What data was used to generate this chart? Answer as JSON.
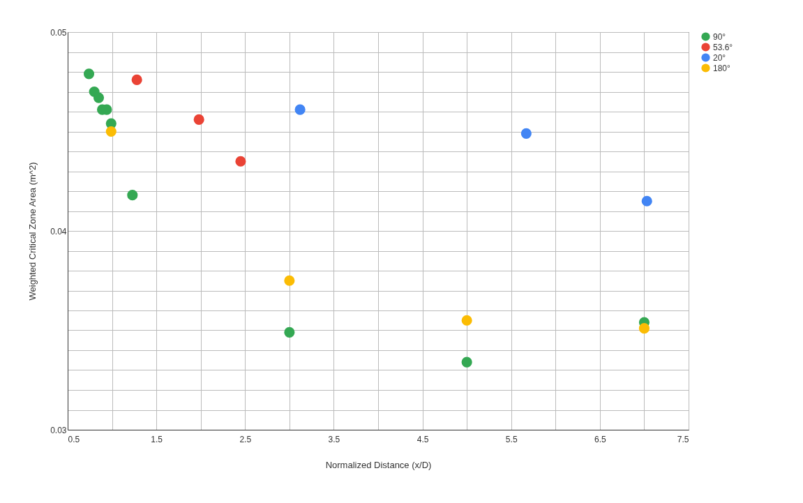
{
  "chart_data": {
    "type": "scatter",
    "xlabel": "Normalized Distance (x/D)",
    "ylabel": "Weighted Critical Zone Area (m^2)",
    "xlim": [
      0.5,
      7.5
    ],
    "xticks": [
      0.5,
      {
        "value": 1.0,
        "label": null
      },
      1.5,
      {
        "value": 2.0,
        "label": null
      },
      2.5,
      {
        "value": 3.0,
        "label": null
      },
      3.5,
      {
        "value": 4.0,
        "label": null
      },
      4.5,
      {
        "value": 5.0,
        "label": null
      },
      5.5,
      {
        "value": 6.0,
        "label": null
      },
      6.5,
      {
        "value": 7.0,
        "label": null
      },
      7.5
    ],
    "ylim": [
      0.03,
      0.05
    ],
    "yticks": [
      0.03,
      {
        "value": 0.031,
        "label": null
      },
      {
        "value": 0.032,
        "label": null
      },
      {
        "value": 0.033,
        "label": null
      },
      {
        "value": 0.034,
        "label": null
      },
      {
        "value": 0.035,
        "label": null
      },
      {
        "value": 0.036,
        "label": null
      },
      {
        "value": 0.037,
        "label": null
      },
      {
        "value": 0.038,
        "label": null
      },
      {
        "value": 0.039,
        "label": null
      },
      0.04,
      {
        "value": 0.041,
        "label": null
      },
      {
        "value": 0.042,
        "label": null
      },
      {
        "value": 0.043,
        "label": null
      },
      {
        "value": 0.044,
        "label": null
      },
      {
        "value": 0.045,
        "label": null
      },
      {
        "value": 0.046,
        "label": null
      },
      {
        "value": 0.047,
        "label": null
      },
      {
        "value": 0.048,
        "label": null
      },
      {
        "value": 0.049,
        "label": null
      },
      0.05
    ],
    "grid": true,
    "legend": "top right",
    "marker": "circle",
    "series": [
      {
        "name": "90°",
        "color": "#34a853",
        "x": [
          0.74,
          0.8,
          0.85,
          0.89,
          0.94,
          0.99,
          1.23,
          3.0,
          5.0,
          7.0
        ],
        "values": [
          0.0479,
          0.047,
          0.0467,
          0.0461,
          0.0461,
          0.0454,
          0.0418,
          0.0349,
          0.0334,
          0.0354
        ]
      },
      {
        "name": "53.6°",
        "color": "#ea4335",
        "x": [
          1.28,
          1.98,
          2.45
        ],
        "values": [
          0.0476,
          0.0456,
          0.0435
        ]
      },
      {
        "name": "20°",
        "color": "#4285f4",
        "x": [
          3.12,
          5.67,
          7.03
        ],
        "values": [
          0.0461,
          0.0449,
          0.0415
        ]
      },
      {
        "name": "180°",
        "color": "#fbbc04",
        "x": [
          0.99,
          3.0,
          5.0,
          7.0
        ],
        "values": [
          0.045,
          0.0375,
          0.0355,
          0.0351
        ]
      }
    ]
  }
}
